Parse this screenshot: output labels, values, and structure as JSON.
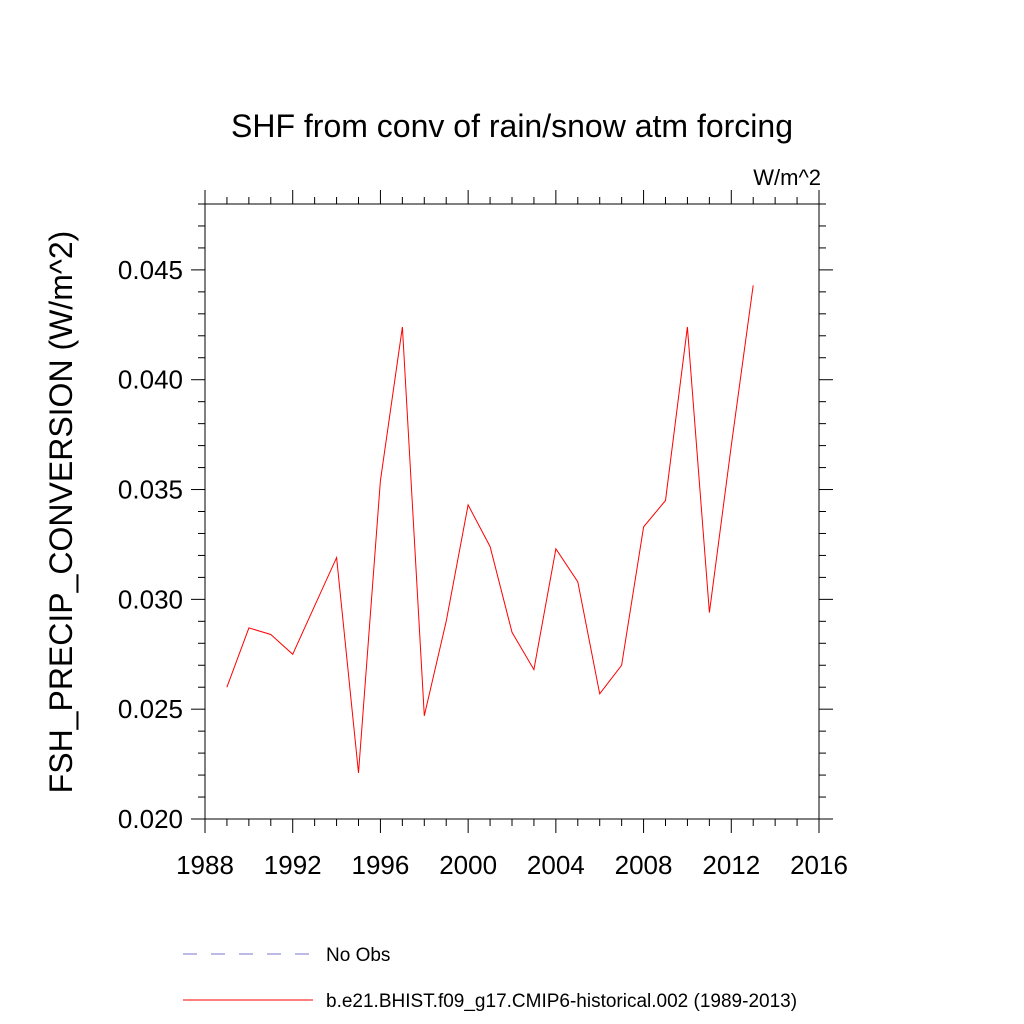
{
  "chart_data": {
    "type": "line",
    "title": "SHF from conv of rain/snow atm forcing",
    "units": "W/m^2",
    "xlabel": "",
    "ylabel": "FSH_PRECIP_CONVERSION  (W/m^2)",
    "xlim": [
      1988,
      2016
    ],
    "ylim": [
      0.02,
      0.048
    ],
    "x_ticks": [
      1988,
      1992,
      1996,
      2000,
      2004,
      2008,
      2012,
      2016
    ],
    "y_ticks": [
      0.02,
      0.025,
      0.03,
      0.035,
      0.04,
      0.045
    ],
    "x_tick_labels": [
      "1988",
      "1992",
      "1996",
      "2000",
      "2004",
      "2008",
      "2012",
      "2016"
    ],
    "y_tick_labels": [
      "0.020",
      "0.025",
      "0.030",
      "0.035",
      "0.040",
      "0.045"
    ],
    "grid": false,
    "legend_position": "bottom",
    "series": [
      {
        "name": "No Obs",
        "color": "#7777cc",
        "style": "dashed",
        "x": [],
        "values": []
      },
      {
        "name": "b.e21.BHIST.f09_g17.CMIP6-historical.002 (1989-2013)",
        "color": "#ff0000",
        "style": "solid",
        "x": [
          1989,
          1990,
          1991,
          1992,
          1993,
          1994,
          1995,
          1996,
          1997,
          1998,
          1999,
          2000,
          2001,
          2002,
          2003,
          2004,
          2005,
          2006,
          2007,
          2008,
          2009,
          2010,
          2011,
          2012,
          2013
        ],
        "values": [
          0.026,
          0.0287,
          0.0284,
          0.0275,
          0.0297,
          0.0319,
          0.0221,
          0.0354,
          0.0424,
          0.0247,
          0.029,
          0.0343,
          0.0324,
          0.0285,
          0.0268,
          0.0323,
          0.0308,
          0.0257,
          0.027,
          0.0333,
          0.0345,
          0.0424,
          0.0294,
          0.037,
          0.0443
        ]
      }
    ]
  }
}
